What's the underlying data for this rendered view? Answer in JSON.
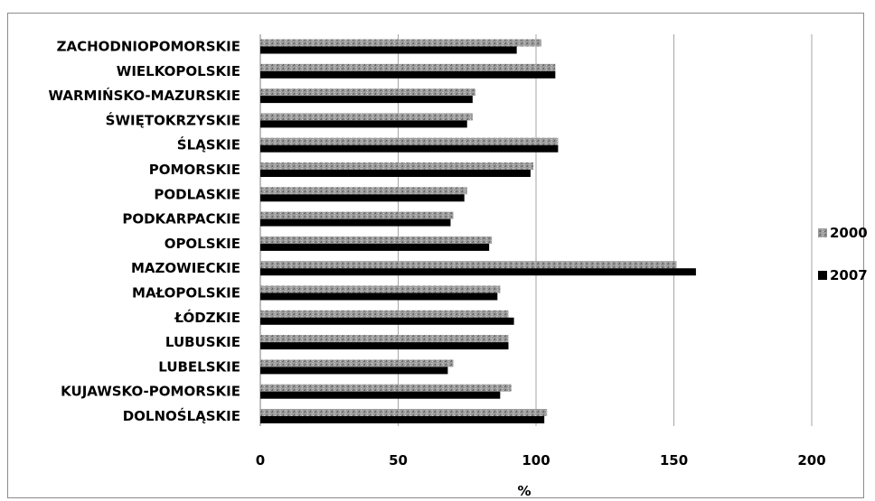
{
  "chart_data": {
    "type": "bar",
    "orientation": "horizontal",
    "title": "",
    "xlabel": "%",
    "ylabel": "",
    "xlim": [
      0,
      200
    ],
    "xticks": [
      "0",
      "50",
      "100",
      "150",
      "200"
    ],
    "grid": "vertical major gridlines",
    "legend_position": "right",
    "categories": [
      "ZACHODNIOPOMORSKIE",
      "WIELKOPOLSKIE",
      "WARMIŃSKO-MAZURSKIE",
      "ŚWIĘTOKRZYSKIE",
      "ŚLĄSKIE",
      "POMORSKIE",
      "PODLASKIE",
      "PODKARPACKIE",
      "OPOLSKIE",
      "MAZOWIECKIE",
      "MAŁOPOLSKIE",
      "ŁÓDZKIE",
      "LUBUSKIE",
      "LUBELSKIE",
      "KUJAWSKO-POMORSKIE",
      "DOLNOŚLĄSKIE"
    ],
    "series": [
      {
        "name": "2000",
        "color": "#8f8f8f",
        "values": [
          102,
          107,
          78,
          77,
          108,
          99,
          75,
          70,
          84,
          151,
          87,
          90,
          90,
          70,
          91,
          104
        ]
      },
      {
        "name": "2007",
        "color": "#000000",
        "values": [
          93,
          107,
          77,
          75,
          108,
          98,
          74,
          69,
          83,
          158,
          86,
          92,
          90,
          68,
          87,
          103
        ]
      }
    ]
  }
}
